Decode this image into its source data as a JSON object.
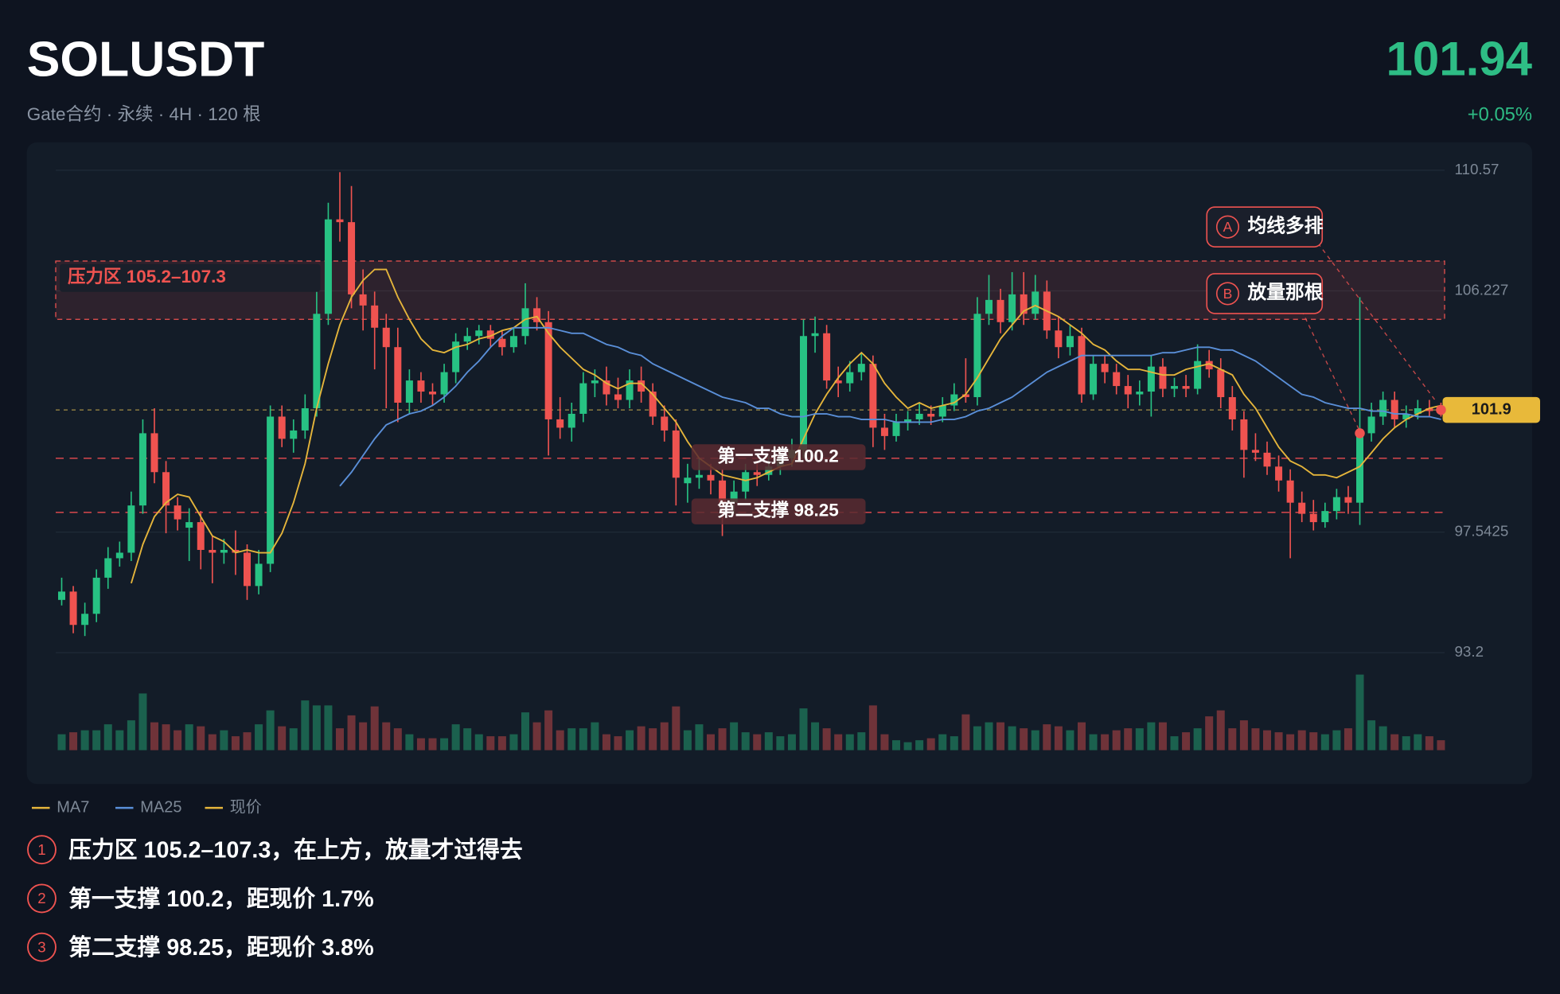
{
  "chart_data": {
    "type": "candlestick",
    "title": "SOLUSDT",
    "subtitle": "Gate合约 · 永续 · 4H · 120 根",
    "change": "+0.05%",
    "up_color": "#27c283",
    "down_color": "#ef5350",
    "ylim": [
      93.2,
      110.57
    ],
    "yticks": [
      110.57,
      106.227,
      97.5425,
      93.2
    ],
    "volume_lim": [
      0,
      80
    ],
    "grid": true,
    "candles": [
      [
        95.1,
        95.9,
        94.9,
        95.4
      ],
      [
        95.4,
        95.6,
        93.9,
        94.2
      ],
      [
        94.2,
        95.0,
        93.8,
        94.6
      ],
      [
        94.6,
        96.2,
        94.3,
        95.9
      ],
      [
        95.9,
        97.0,
        95.5,
        96.6
      ],
      [
        96.6,
        97.2,
        96.3,
        96.8
      ],
      [
        96.8,
        99.0,
        96.5,
        98.5
      ],
      [
        98.5,
        101.6,
        98.2,
        101.1
      ],
      [
        101.1,
        102.0,
        99.3,
        99.7
      ],
      [
        99.7,
        100.1,
        97.5,
        98.5
      ],
      [
        98.5,
        98.8,
        97.6,
        98.0
      ],
      [
        97.7,
        98.4,
        96.5,
        97.9
      ],
      [
        97.9,
        98.3,
        96.2,
        96.9
      ],
      [
        96.9,
        97.4,
        95.7,
        96.8
      ],
      [
        96.8,
        97.3,
        96.4,
        96.9
      ],
      [
        96.9,
        97.6,
        96.0,
        96.8
      ],
      [
        96.8,
        97.1,
        95.1,
        95.6
      ],
      [
        95.6,
        96.9,
        95.3,
        96.4
      ],
      [
        96.4,
        102.1,
        96.1,
        101.7
      ],
      [
        101.7,
        102.1,
        100.6,
        100.9
      ],
      [
        100.9,
        101.6,
        100.4,
        101.2
      ],
      [
        101.2,
        102.5,
        100.9,
        102.0
      ],
      [
        102.0,
        106.4,
        101.7,
        105.4
      ],
      [
        105.4,
        109.4,
        105.0,
        108.8
      ],
      [
        108.8,
        110.5,
        108.0,
        108.7
      ],
      [
        108.7,
        110.0,
        105.6,
        106.1
      ],
      [
        106.1,
        107.0,
        104.8,
        105.7
      ],
      [
        105.7,
        106.2,
        103.4,
        104.9
      ],
      [
        104.9,
        105.4,
        102.0,
        104.2
      ],
      [
        104.2,
        104.9,
        101.5,
        102.2
      ],
      [
        102.2,
        103.4,
        101.8,
        103.0
      ],
      [
        103.0,
        103.3,
        102.2,
        102.6
      ],
      [
        102.6,
        102.9,
        102.1,
        102.5
      ],
      [
        102.5,
        103.6,
        102.2,
        103.3
      ],
      [
        103.3,
        104.7,
        102.9,
        104.4
      ],
      [
        104.4,
        104.9,
        104.1,
        104.6
      ],
      [
        104.6,
        105.0,
        104.3,
        104.8
      ],
      [
        104.8,
        105.0,
        104.2,
        104.5
      ],
      [
        104.5,
        104.8,
        103.9,
        104.2
      ],
      [
        104.2,
        104.9,
        104.0,
        104.6
      ],
      [
        104.6,
        106.5,
        104.3,
        105.6
      ],
      [
        105.6,
        106.0,
        104.8,
        105.1
      ],
      [
        105.1,
        105.5,
        100.3,
        101.6
      ],
      [
        101.6,
        102.4,
        100.9,
        101.3
      ],
      [
        101.3,
        102.2,
        100.8,
        101.8
      ],
      [
        101.8,
        103.3,
        101.5,
        102.9
      ],
      [
        102.9,
        103.4,
        102.4,
        103.0
      ],
      [
        103.0,
        103.5,
        102.1,
        102.5
      ],
      [
        102.5,
        103.1,
        102.0,
        102.3
      ],
      [
        102.3,
        103.4,
        102.0,
        103.0
      ],
      [
        103.0,
        103.5,
        102.2,
        102.6
      ],
      [
        102.6,
        102.9,
        101.4,
        101.7
      ],
      [
        101.7,
        102.1,
        100.8,
        101.2
      ],
      [
        101.2,
        101.6,
        98.5,
        99.5
      ],
      [
        99.3,
        100.0,
        98.6,
        99.5
      ],
      [
        99.5,
        100.2,
        99.1,
        99.6
      ],
      [
        99.6,
        100.0,
        98.9,
        99.4
      ],
      [
        99.4,
        99.8,
        97.4,
        98.6
      ],
      [
        98.6,
        99.4,
        98.2,
        99.0
      ],
      [
        99.0,
        100.0,
        98.7,
        99.7
      ],
      [
        99.7,
        100.1,
        99.2,
        99.6
      ],
      [
        99.6,
        100.3,
        99.4,
        99.9
      ],
      [
        99.9,
        100.6,
        99.6,
        100.2
      ],
      [
        100.2,
        100.9,
        99.9,
        100.5
      ],
      [
        100.5,
        105.2,
        100.2,
        104.6
      ],
      [
        104.6,
        105.3,
        104.0,
        104.7
      ],
      [
        104.7,
        105.0,
        102.7,
        103.0
      ],
      [
        103.0,
        103.5,
        102.4,
        102.9
      ],
      [
        102.9,
        103.7,
        102.6,
        103.3
      ],
      [
        103.3,
        104.0,
        103.0,
        103.6
      ],
      [
        103.6,
        103.9,
        100.6,
        101.3
      ],
      [
        101.3,
        101.8,
        100.5,
        101.0
      ],
      [
        101.0,
        101.8,
        100.8,
        101.5
      ],
      [
        101.5,
        101.9,
        101.2,
        101.6
      ],
      [
        101.6,
        102.2,
        101.4,
        101.8
      ],
      [
        101.8,
        102.1,
        101.4,
        101.7
      ],
      [
        101.7,
        102.4,
        101.5,
        102.1
      ],
      [
        102.1,
        102.9,
        101.9,
        102.5
      ],
      [
        102.5,
        103.8,
        102.2,
        102.4
      ],
      [
        102.4,
        106.0,
        102.1,
        105.4
      ],
      [
        105.4,
        106.8,
        105.0,
        105.9
      ],
      [
        105.9,
        106.3,
        104.7,
        105.1
      ],
      [
        105.1,
        106.9,
        104.8,
        106.1
      ],
      [
        106.1,
        106.9,
        105.0,
        105.4
      ],
      [
        105.4,
        106.8,
        105.2,
        106.2
      ],
      [
        106.2,
        106.6,
        104.5,
        104.8
      ],
      [
        104.8,
        105.3,
        103.8,
        104.2
      ],
      [
        104.2,
        105.0,
        103.9,
        104.6
      ],
      [
        104.6,
        104.9,
        102.2,
        102.5
      ],
      [
        102.5,
        103.9,
        102.3,
        103.6
      ],
      [
        103.6,
        103.9,
        102.9,
        103.3
      ],
      [
        103.3,
        103.6,
        102.5,
        102.8
      ],
      [
        102.8,
        103.2,
        102.0,
        102.5
      ],
      [
        102.5,
        103.0,
        102.1,
        102.6
      ],
      [
        102.6,
        103.9,
        101.7,
        103.5
      ],
      [
        103.5,
        103.8,
        102.4,
        102.7
      ],
      [
        102.7,
        103.1,
        102.4,
        102.8
      ],
      [
        102.8,
        103.2,
        102.4,
        102.7
      ],
      [
        102.7,
        104.3,
        102.5,
        103.7
      ],
      [
        103.7,
        104.1,
        103.1,
        103.4
      ],
      [
        103.4,
        103.8,
        102.0,
        102.4
      ],
      [
        102.4,
        102.8,
        101.2,
        101.6
      ],
      [
        101.6,
        101.9,
        99.5,
        100.5
      ],
      [
        100.5,
        101.1,
        100.1,
        100.4
      ],
      [
        100.4,
        100.8,
        99.6,
        99.9
      ],
      [
        99.9,
        100.3,
        99.0,
        99.4
      ],
      [
        99.4,
        99.8,
        96.6,
        98.6
      ],
      [
        98.6,
        99.0,
        97.9,
        98.2
      ],
      [
        98.2,
        98.7,
        97.6,
        97.9
      ],
      [
        97.9,
        98.6,
        97.7,
        98.3
      ],
      [
        98.3,
        99.1,
        98.0,
        98.8
      ],
      [
        98.8,
        99.2,
        98.2,
        98.6
      ],
      [
        98.6,
        106.0,
        97.8,
        101.1
      ],
      [
        101.1,
        102.2,
        100.8,
        101.7
      ],
      [
        101.7,
        102.6,
        101.4,
        102.3
      ],
      [
        102.3,
        102.6,
        101.3,
        101.6
      ],
      [
        101.6,
        102.1,
        101.3,
        101.8
      ],
      [
        101.8,
        102.3,
        101.6,
        102.0
      ],
      [
        102.0,
        102.3,
        101.7,
        101.9
      ],
      [
        102.0,
        102.2,
        101.7,
        101.94
      ]
    ],
    "volume": [
      16,
      18,
      20,
      20,
      26,
      20,
      30,
      57,
      28,
      26,
      20,
      26,
      24,
      16,
      20,
      14,
      18,
      26,
      40,
      24,
      22,
      50,
      45,
      45,
      22,
      35,
      28,
      44,
      28,
      22,
      16,
      12,
      12,
      12,
      26,
      22,
      16,
      14,
      14,
      16,
      38,
      28,
      40,
      20,
      22,
      22,
      28,
      16,
      14,
      20,
      24,
      22,
      28,
      44,
      20,
      26,
      16,
      22,
      28,
      18,
      16,
      18,
      14,
      16,
      42,
      28,
      22,
      16,
      16,
      18,
      45,
      16,
      10,
      8,
      10,
      12,
      16,
      14,
      36,
      24,
      28,
      28,
      24,
      22,
      20,
      26,
      24,
      20,
      28,
      16,
      16,
      20,
      22,
      22,
      28,
      28,
      14,
      18,
      22,
      34,
      40,
      22,
      30,
      22,
      20,
      18,
      16,
      20,
      18,
      16,
      20,
      22,
      76,
      30,
      24,
      16,
      14,
      16,
      14,
      10
    ],
    "series": [
      {
        "name": "MA7",
        "color": "#e5b53b",
        "values": [
          null,
          null,
          null,
          null,
          null,
          null,
          95.7,
          97.1,
          98.1,
          98.6,
          98.9,
          98.8,
          98.1,
          97.4,
          97.2,
          96.8,
          96.9,
          96.8,
          96.8,
          97.5,
          98.6,
          100.0,
          102.0,
          103.6,
          105.0,
          106.0,
          106.6,
          107.0,
          107.0,
          106.0,
          105.2,
          104.5,
          104.1,
          104.0,
          104.2,
          104.3,
          104.5,
          104.6,
          104.8,
          104.9,
          105.2,
          105.3,
          104.7,
          104.2,
          103.8,
          103.4,
          103.2,
          102.9,
          102.7,
          102.9,
          102.9,
          102.5,
          102.0,
          101.5,
          100.8,
          100.2,
          99.9,
          99.6,
          99.5,
          99.4,
          99.5,
          99.7,
          99.9,
          100.0,
          100.9,
          101.8,
          102.5,
          103.1,
          103.6,
          104.0,
          103.6,
          102.9,
          102.4,
          102.0,
          102.2,
          102.0,
          102.1,
          102.2,
          102.5,
          103.1,
          103.8,
          104.5,
          105.0,
          105.5,
          105.7,
          105.5,
          105.3,
          105.0,
          104.7,
          104.3,
          104.1,
          103.7,
          103.4,
          103.4,
          103.3,
          103.2,
          103.2,
          103.4,
          103.5,
          103.6,
          103.4,
          103.2,
          102.5,
          102.0,
          101.3,
          100.6,
          100.1,
          99.9,
          99.6,
          99.6,
          99.5,
          99.7,
          99.9,
          100.4,
          100.9,
          101.3,
          101.6,
          101.8,
          102.0,
          102.1
        ]
      },
      {
        "name": "MA25",
        "color": "#5a8fd8",
        "values": [
          null,
          null,
          null,
          null,
          null,
          null,
          null,
          null,
          null,
          null,
          null,
          null,
          null,
          null,
          null,
          null,
          null,
          null,
          null,
          null,
          null,
          null,
          null,
          null,
          99.2,
          99.7,
          100.3,
          100.9,
          101.4,
          101.6,
          101.8,
          101.9,
          102.1,
          102.4,
          102.8,
          103.3,
          103.7,
          104.2,
          104.6,
          104.9,
          104.9,
          104.9,
          104.9,
          104.8,
          104.7,
          104.7,
          104.5,
          104.3,
          104.2,
          104.0,
          103.9,
          103.6,
          103.4,
          103.2,
          103.0,
          102.8,
          102.6,
          102.4,
          102.3,
          102.2,
          102.0,
          102.0,
          101.8,
          101.7,
          101.7,
          101.8,
          101.8,
          101.7,
          101.7,
          101.6,
          101.6,
          101.6,
          101.5,
          101.5,
          101.5,
          101.5,
          101.6,
          101.6,
          101.7,
          101.9,
          102.0,
          102.2,
          102.4,
          102.7,
          103.0,
          103.3,
          103.5,
          103.7,
          103.9,
          103.9,
          103.9,
          103.9,
          103.9,
          103.9,
          103.9,
          104.0,
          104.0,
          104.1,
          104.2,
          104.2,
          104.1,
          104.1,
          103.9,
          103.7,
          103.4,
          103.1,
          102.8,
          102.5,
          102.4,
          102.2,
          102.1,
          102.0,
          102.0,
          101.9,
          101.9,
          101.8,
          101.8,
          101.7,
          101.7,
          101.6
        ]
      }
    ],
    "price_line": {
      "name": "现价",
      "color": "#e5b53b",
      "value": 101.94,
      "label": "101.9"
    },
    "resistance": {
      "label": "压力区 105.2–107.3",
      "low": 105.2,
      "high": 107.3
    },
    "supports": [
      {
        "label": "第一支撑 100.2",
        "value": 100.2
      },
      {
        "label": "第二支撑 98.25",
        "value": 98.25
      }
    ],
    "annotations": [
      {
        "badge": "A",
        "text": "均线多排"
      },
      {
        "badge": "B",
        "text": "放量那根"
      }
    ],
    "notes": [
      {
        "num": 1,
        "text": "压力区 105.2–107.3，在上方，放量才过得去"
      },
      {
        "num": 2,
        "text": "第一支撑 100.2，距现价 1.7%"
      },
      {
        "num": 3,
        "text": "第二支撑 98.25，距现价 3.8%"
      }
    ]
  }
}
